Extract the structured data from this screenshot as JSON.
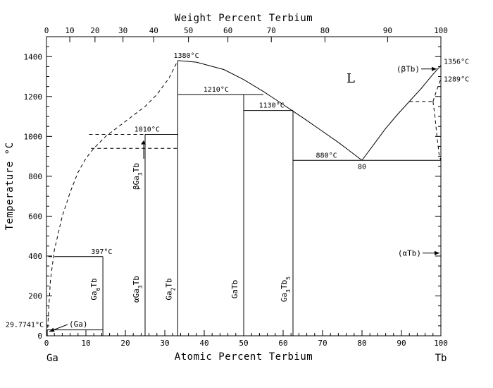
{
  "chart_data": {
    "type": "phase_diagram",
    "x_bottom": {
      "title": "Atomic Percent Terbium",
      "range": [
        0,
        100
      ],
      "ticks": [
        0,
        10,
        20,
        30,
        40,
        50,
        60,
        70,
        80,
        90,
        100
      ],
      "left_end_label": "Ga",
      "right_end_label": "Tb"
    },
    "x_top": {
      "title": "Weight Percent Terbium",
      "ticks": [
        0,
        10,
        20,
        30,
        40,
        50,
        60,
        70,
        80,
        90,
        100
      ],
      "tick_positions_at": [
        0,
        5.9,
        12.3,
        19.4,
        27.2,
        36.0,
        46.0,
        57.0,
        70.6,
        86.5,
        100
      ]
    },
    "y_axis": {
      "title": "Temperature °C",
      "range": [
        0,
        1500
      ],
      "ticks": [
        0,
        200,
        400,
        600,
        800,
        1000,
        1200,
        1400
      ]
    },
    "region_label": "L",
    "temperature_labels": [
      {
        "text": "1380°C",
        "x": 33.3,
        "y": 1380
      },
      {
        "text": "1210°C",
        "x": 43,
        "y": 1210
      },
      {
        "text": "1130°C",
        "x": 56,
        "y": 1130
      },
      {
        "text": "1010°C",
        "x": 25.5,
        "y": 1010
      },
      {
        "text": "880°C",
        "x": 71,
        "y": 880
      },
      {
        "text": "397°C",
        "x": 14,
        "y": 397
      },
      {
        "text": "80",
        "x": 80,
        "y": 880
      },
      {
        "text": "1356°C",
        "x": 100,
        "y": 1356
      },
      {
        "text": "1289°C",
        "x": 100,
        "y": 1289
      },
      {
        "text": "29.7741°C",
        "x": 0,
        "y": 29.77
      }
    ],
    "phases": [
      {
        "name": "Ga6Tb",
        "parts": [
          {
            "t": "Ga"
          },
          {
            "t": "6",
            "sub": true
          },
          {
            "t": "Tb"
          }
        ],
        "x": 14.3
      },
      {
        "name": "αGa3Tb",
        "parts": [
          {
            "t": "α"
          },
          {
            "t": "Ga"
          },
          {
            "t": "3",
            "sub": true
          },
          {
            "t": "Tb"
          }
        ],
        "x": 25
      },
      {
        "name": "βGa3Tb",
        "parts": [
          {
            "t": "β"
          },
          {
            "t": "Ga"
          },
          {
            "t": "3",
            "sub": true
          },
          {
            "t": "Tb"
          }
        ],
        "x": 25
      },
      {
        "name": "Ga2Tb",
        "parts": [
          {
            "t": "Ga"
          },
          {
            "t": "2",
            "sub": true
          },
          {
            "t": "Tb"
          }
        ],
        "x": 33.3
      },
      {
        "name": "GaTb",
        "parts": [
          {
            "t": "GaTb"
          }
        ],
        "x": 50
      },
      {
        "name": "Ga3Tb5",
        "parts": [
          {
            "t": "Ga"
          },
          {
            "t": "3",
            "sub": true
          },
          {
            "t": "Tb"
          },
          {
            "t": "5",
            "sub": true
          }
        ],
        "x": 62.5
      }
    ],
    "solid_phases": [
      {
        "text": "(Ga)",
        "x": 0,
        "y": 30
      },
      {
        "text": "(αTb)",
        "x": 100,
        "y": 415
      },
      {
        "text": "(βTb)",
        "x": 100,
        "y": 1310
      }
    ],
    "liquidus": {
      "ga2tb_peak": {
        "x": 33.3,
        "temperature": 1380
      },
      "solid_segments": [
        [
          [
            33.3,
            1380
          ],
          [
            38,
            1372
          ],
          [
            45,
            1335
          ],
          [
            50,
            1285
          ],
          [
            55,
            1225
          ],
          [
            60,
            1160
          ],
          [
            63,
            1120
          ],
          [
            66,
            1080
          ],
          [
            70,
            1025
          ],
          [
            74,
            970
          ],
          [
            77,
            925
          ],
          [
            80,
            880
          ]
        ],
        [
          [
            80,
            880
          ],
          [
            83,
            960
          ],
          [
            86,
            1040
          ],
          [
            89,
            1110
          ],
          [
            92,
            1175
          ],
          [
            95,
            1240
          ],
          [
            97.5,
            1300
          ],
          [
            100,
            1356
          ]
        ]
      ],
      "dashed_segments": [
        [
          [
            0.3,
            40
          ],
          [
            1,
            280
          ],
          [
            2,
            430
          ],
          [
            4,
            600
          ],
          [
            6,
            720
          ],
          [
            8,
            820
          ],
          [
            10,
            890
          ],
          [
            12,
            940
          ],
          [
            15,
            1000
          ],
          [
            20,
            1075
          ],
          [
            25,
            1150
          ],
          [
            28,
            1210
          ],
          [
            31,
            1290
          ],
          [
            33.3,
            1380
          ]
        ]
      ]
    },
    "horizontal_lines_solid": [
      {
        "T": 1380,
        "x": [
          33.3,
          33.3
        ]
      },
      {
        "T": 1210,
        "x": [
          33.3,
          55
        ]
      },
      {
        "T": 1130,
        "x": [
          50,
          62.5
        ]
      },
      {
        "T": 1010,
        "x": [
          25,
          33.3
        ]
      },
      {
        "T": 880,
        "x": [
          62.5,
          100
        ]
      },
      {
        "T": 397,
        "x": [
          2,
          14.3
        ]
      },
      {
        "T": 29.77,
        "x": [
          0,
          14.3
        ]
      }
    ],
    "horizontal_lines_dashed": [
      {
        "T": 1010,
        "x": [
          10.8,
          25
        ]
      },
      {
        "T": 940,
        "x": [
          11.3,
          33.3
        ]
      },
      {
        "T": 397,
        "x": [
          0.5,
          2
        ]
      },
      {
        "T": 1175,
        "x": [
          92,
          98
        ]
      }
    ],
    "vertical_lines_solid": [
      {
        "x": 14.3,
        "T": [
          0,
          397
        ]
      },
      {
        "x": 25,
        "T": [
          0,
          1010
        ]
      },
      {
        "x": 33.3,
        "T": [
          0,
          1380
        ]
      },
      {
        "x": 50,
        "T": [
          0,
          1210
        ]
      },
      {
        "x": 62.5,
        "T": [
          0,
          1130
        ]
      },
      {
        "x": 0.2,
        "T": [
          0,
          30
        ]
      },
      {
        "x": 100,
        "T": [
          0,
          1356
        ]
      }
    ],
    "tb_dashed": [
      [
        [
          98,
          1175
        ],
        [
          99,
          1235
        ],
        [
          100,
          1289
        ]
      ],
      [
        [
          98,
          1175
        ],
        [
          98.5,
          1100
        ],
        [
          99,
          1000
        ],
        [
          99.6,
          900
        ],
        [
          100,
          880
        ]
      ]
    ]
  }
}
